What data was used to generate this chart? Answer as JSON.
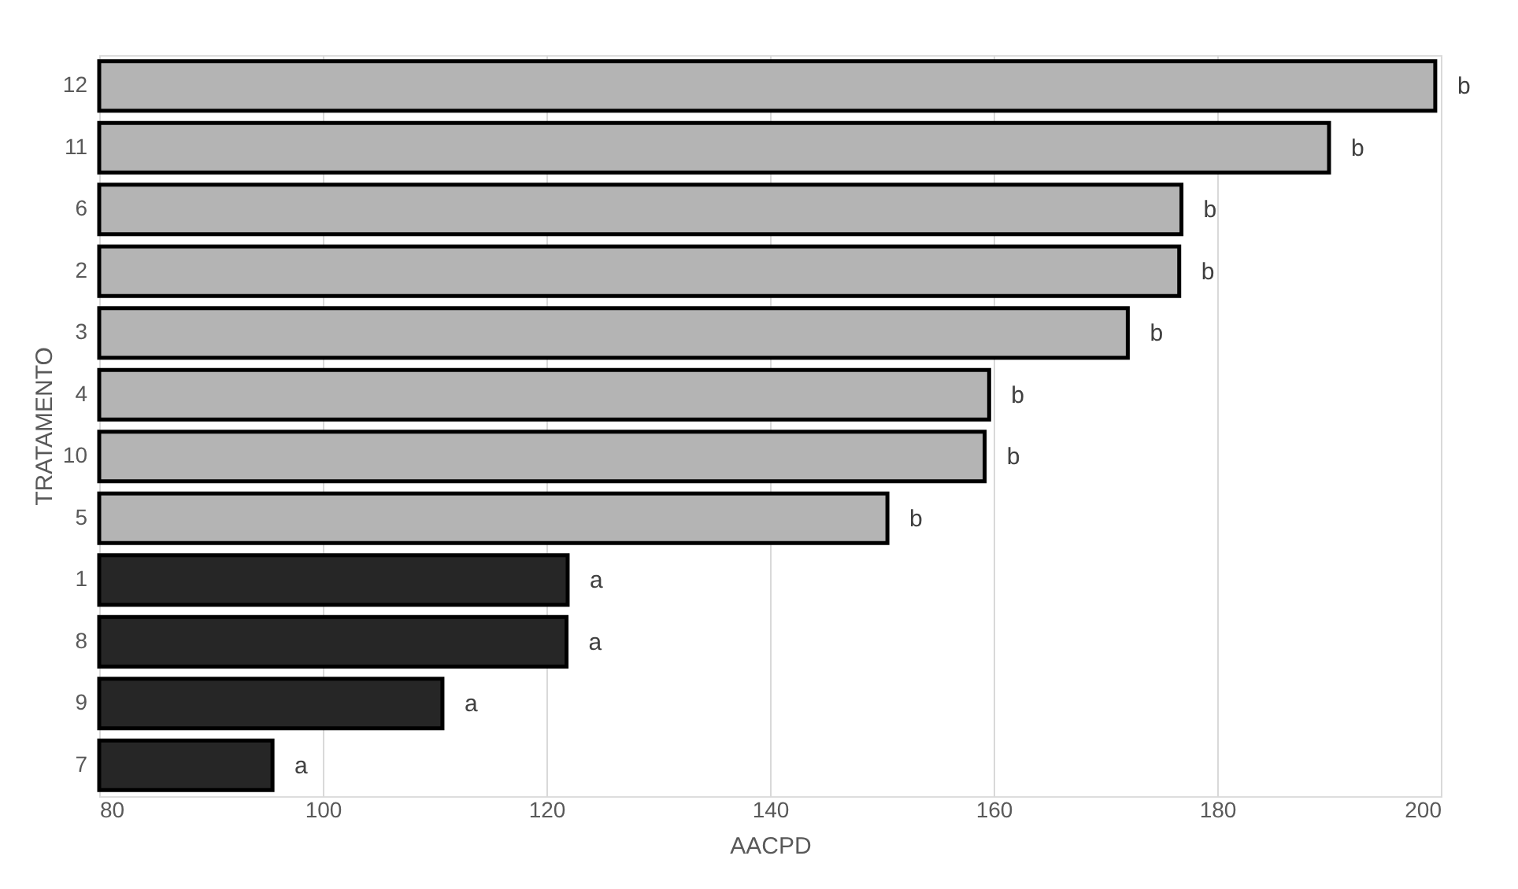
{
  "chart_data": {
    "type": "bar",
    "orientation": "horizontal",
    "xlabel": "AACPD",
    "ylabel": "TRATAMENTO",
    "categories": [
      "12",
      "11",
      "6",
      "2",
      "3",
      "4",
      "10",
      "5",
      "1",
      "8",
      "9",
      "7"
    ],
    "values": [
      199.5,
      190,
      176.8,
      176.6,
      172,
      159.6,
      159.2,
      150.5,
      121.9,
      121.8,
      110.7,
      95.5
    ],
    "colors": [
      "#b4b4b4",
      "#b4b4b4",
      "#b4b4b4",
      "#b4b4b4",
      "#b4b4b4",
      "#b4b4b4",
      "#b4b4b4",
      "#b4b4b4",
      "#262626",
      "#262626",
      "#262626",
      "#262626"
    ],
    "value_labels": [
      "b",
      "b",
      "b",
      "b",
      "b",
      "b",
      "b",
      "b",
      "a",
      "a",
      "a",
      "a"
    ],
    "xlim": [
      80,
      200
    ],
    "xticks": [
      80,
      100,
      120,
      140,
      160,
      180,
      200
    ],
    "grid": "x"
  }
}
